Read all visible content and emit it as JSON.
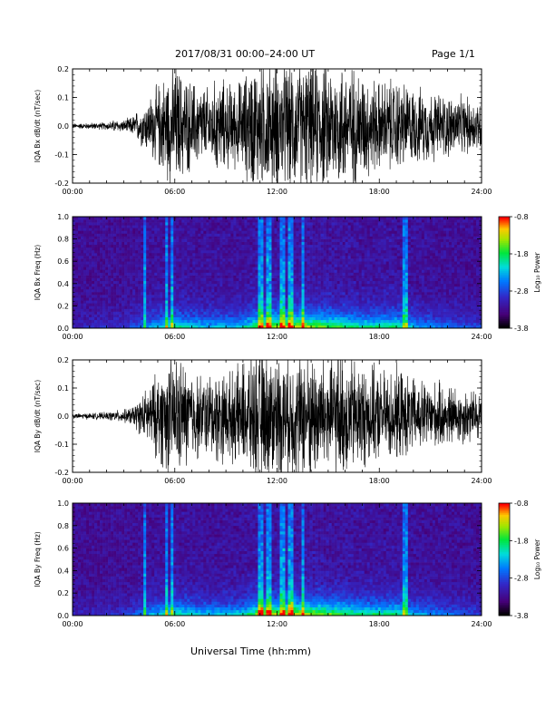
{
  "header": {
    "date_range": "2017/08/31   00:00–24:00 UT",
    "page_label": "Page 1/1"
  },
  "footer": {
    "xlabel": "Universal Time (hh:mm)"
  },
  "colorbar": {
    "label": "Log₁₀ Power",
    "ticks": [
      "-0.8",
      "-1.8",
      "-2.8",
      "-3.8"
    ],
    "range": [
      -3.8,
      -0.8
    ]
  },
  "chart_data": [
    {
      "type": "line",
      "ylabel": "IQA Bx dB/dt (nT/sec)",
      "xlim": [
        0,
        24
      ],
      "ylim": [
        -0.2,
        0.2
      ],
      "x_tick_labels": [
        "00:00",
        "06:00",
        "12:00",
        "18:00",
        "24:00"
      ],
      "y_tick_labels": [
        "-0.2",
        "-0.1",
        "0.0",
        "0.1",
        "0.2"
      ],
      "envelope": {
        "x": [
          0,
          1,
          2,
          2.5,
          3,
          3.5,
          4,
          4.5,
          5,
          5.5,
          6,
          6.5,
          7,
          7.5,
          8,
          8.5,
          9,
          9.5,
          10,
          10.5,
          11,
          12,
          13,
          14,
          15,
          16,
          17,
          18,
          19,
          20,
          21,
          22,
          23,
          24
        ],
        "amplitude": [
          0.008,
          0.01,
          0.012,
          0.02,
          0.018,
          0.03,
          0.06,
          0.09,
          0.13,
          0.17,
          0.2,
          0.16,
          0.14,
          0.13,
          0.12,
          0.15,
          0.14,
          0.13,
          0.15,
          0.2,
          0.2,
          0.2,
          0.2,
          0.2,
          0.2,
          0.2,
          0.17,
          0.14,
          0.15,
          0.12,
          0.11,
          0.1,
          0.09,
          0.08
        ]
      }
    },
    {
      "type": "heatmap",
      "ylabel": "IQA Bx Freq (Hz)",
      "xlim": [
        0,
        24
      ],
      "ylim": [
        0,
        1
      ],
      "x_tick_labels": [
        "00:00",
        "06:00",
        "12:00",
        "18:00",
        "24:00"
      ],
      "y_tick_labels": [
        "0.0",
        "0.2",
        "0.4",
        "0.6",
        "0.8",
        "1.0"
      ],
      "value_label": "Log₁₀ Power",
      "zlim": [
        -3.8,
        -0.8
      ],
      "vertical_bands_hours": [
        4.2,
        5.5,
        5.8,
        11.0,
        11.5,
        12.3,
        12.8,
        13.5,
        19.5
      ]
    },
    {
      "type": "line",
      "ylabel": "IQA By dB/dt (nT/sec)",
      "xlim": [
        0,
        24
      ],
      "ylim": [
        -0.2,
        0.2
      ],
      "x_tick_labels": [
        "00:00",
        "06:00",
        "12:00",
        "18:00",
        "24:00"
      ],
      "y_tick_labels": [
        "-0.2",
        "-0.1",
        "0.0",
        "0.1",
        "0.2"
      ],
      "envelope": {
        "x": [
          0,
          1,
          2,
          2.5,
          3,
          3.5,
          4,
          4.5,
          5,
          5.5,
          6,
          6.5,
          7,
          7.5,
          8,
          8.5,
          9,
          9.5,
          10,
          10.5,
          11,
          12,
          13,
          14,
          15,
          16,
          17,
          18,
          19,
          20,
          21,
          22,
          23,
          24
        ],
        "amplitude": [
          0.008,
          0.01,
          0.012,
          0.018,
          0.02,
          0.03,
          0.06,
          0.1,
          0.14,
          0.18,
          0.2,
          0.17,
          0.15,
          0.13,
          0.13,
          0.15,
          0.14,
          0.14,
          0.17,
          0.2,
          0.2,
          0.2,
          0.2,
          0.2,
          0.2,
          0.2,
          0.17,
          0.14,
          0.15,
          0.12,
          0.11,
          0.1,
          0.09,
          0.08
        ]
      }
    },
    {
      "type": "heatmap",
      "ylabel": "IQA By Freq (Hz)",
      "xlim": [
        0,
        24
      ],
      "ylim": [
        0,
        1
      ],
      "x_tick_labels": [
        "00:00",
        "06:00",
        "12:00",
        "18:00",
        "24:00"
      ],
      "y_tick_labels": [
        "0.0",
        "0.2",
        "0.4",
        "0.6",
        "0.8",
        "1.0"
      ],
      "value_label": "Log₁₀ Power",
      "zlim": [
        -3.8,
        -0.8
      ],
      "vertical_bands_hours": [
        4.2,
        5.5,
        5.8,
        11.0,
        11.5,
        12.3,
        12.8,
        13.5,
        19.5
      ]
    }
  ]
}
